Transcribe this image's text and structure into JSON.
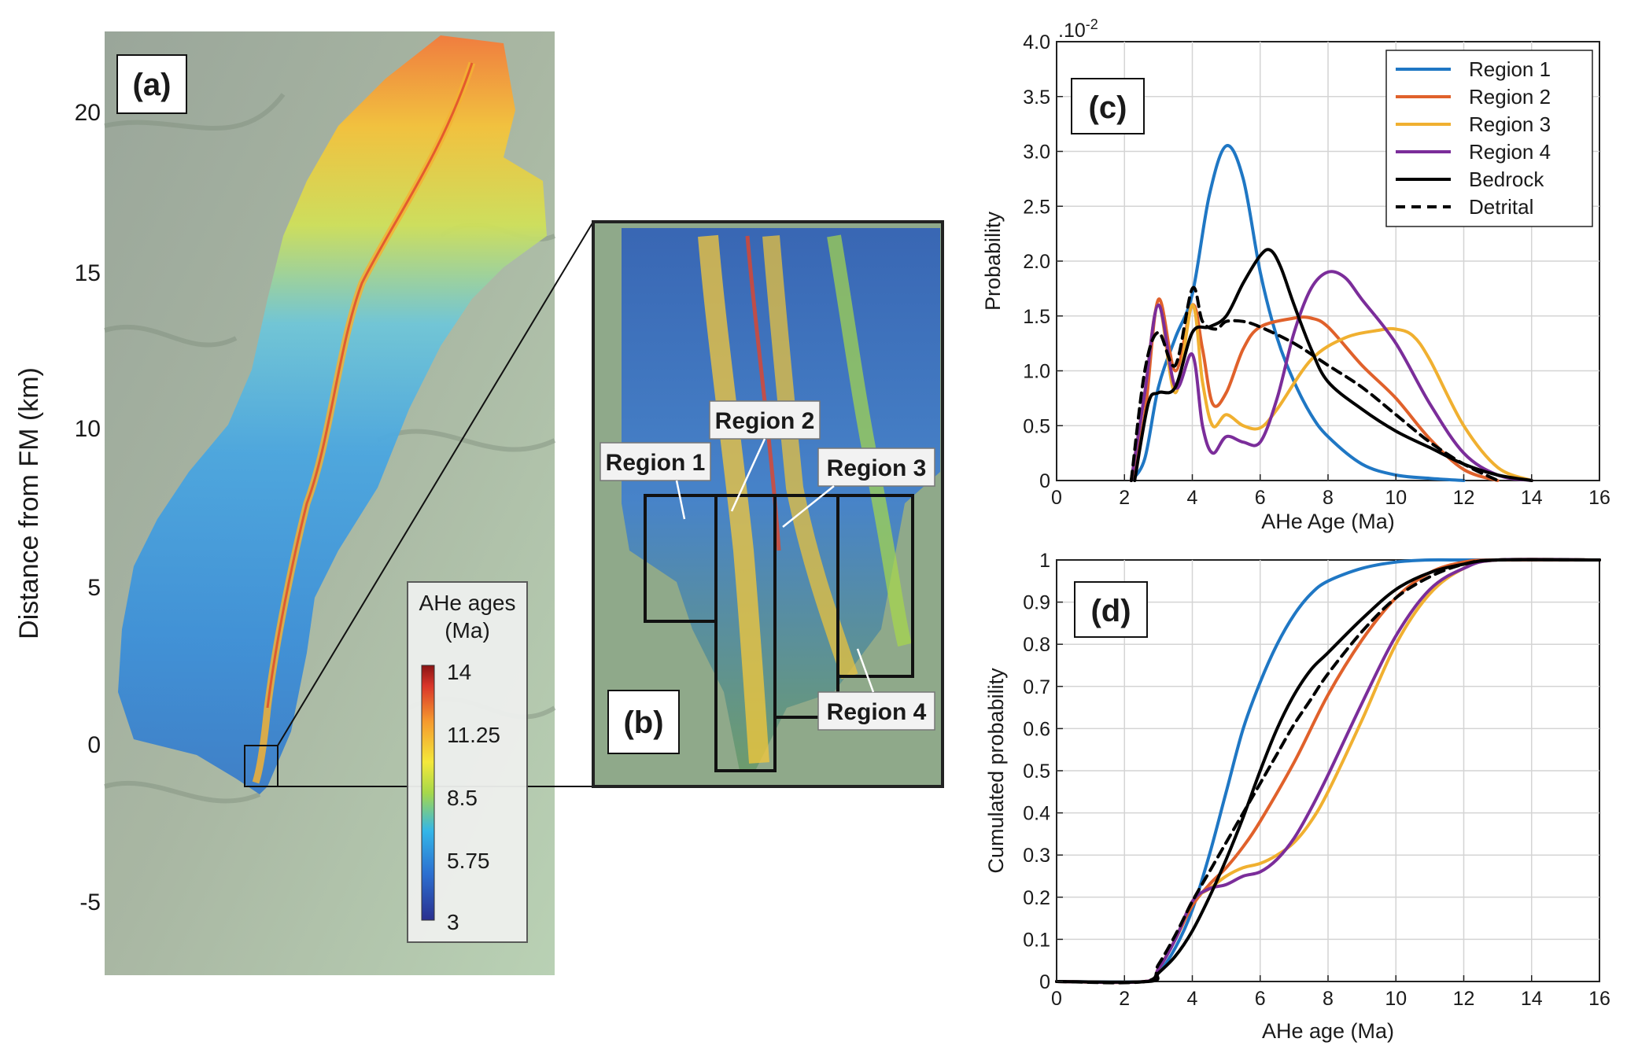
{
  "panels": {
    "a": {
      "label": "(a)",
      "ylabel": "Distance from FM (km)",
      "yticks": [
        "20",
        "15",
        "10",
        "5",
        "0",
        "-5"
      ],
      "colorbar": {
        "title_line1": "AHe ages",
        "title_line2": "(Ma)",
        "ticks": [
          "14",
          "11.25",
          "8.5",
          "5.75",
          "3"
        ]
      }
    },
    "b": {
      "label": "(b)",
      "regions": [
        "Region 1",
        "Region 2",
        "Region 3",
        "Region 4"
      ]
    },
    "c": {
      "label": "(c)"
    },
    "d": {
      "label": "(d)"
    }
  },
  "colors": {
    "region1": "#1f77c4",
    "region2": "#e0612b",
    "region3": "#f0b030",
    "region4": "#7b2d9a",
    "bedrock": "#000000",
    "detrital": "#000000"
  },
  "chart_data": [
    {
      "type": "line",
      "panel": "c",
      "xlabel": "AHe Age (Ma)",
      "ylabel": "Probability",
      "exponent_label": ".10",
      "exponent_power": "-2",
      "xlim": [
        0,
        16
      ],
      "ylim": [
        0,
        4.0
      ],
      "xticks": [
        "0",
        "2",
        "4",
        "6",
        "8",
        "10",
        "12",
        "14",
        "16"
      ],
      "yticks": [
        "0",
        "0.5",
        "1.0",
        "1.5",
        "2.0",
        "2.5",
        "3.0",
        "3.5",
        "4.0"
      ],
      "grid": true,
      "legend_position": "top-right",
      "series": [
        {
          "name": "Region 1",
          "color": "#1f77c4",
          "dash": "solid",
          "x": [
            2.2,
            2.6,
            3.0,
            3.5,
            4.0,
            4.5,
            5.0,
            5.5,
            6.0,
            6.5,
            7.0,
            7.5,
            8.0,
            9.0,
            10.0,
            11.0,
            12.0
          ],
          "y": [
            0,
            0.2,
            0.85,
            1.3,
            1.7,
            2.6,
            3.05,
            2.75,
            1.9,
            1.3,
            0.9,
            0.6,
            0.4,
            0.15,
            0.05,
            0.02,
            0
          ]
        },
        {
          "name": "Region 2",
          "color": "#e0612b",
          "dash": "solid",
          "x": [
            2.2,
            2.6,
            3.0,
            3.5,
            4.0,
            4.3,
            4.6,
            5.0,
            5.5,
            6.0,
            7.0,
            7.5,
            8.0,
            9.0,
            10.0,
            11.0,
            12.0,
            13.0
          ],
          "y": [
            0,
            0.6,
            1.65,
            1.0,
            1.6,
            1.2,
            0.7,
            0.8,
            1.2,
            1.4,
            1.48,
            1.48,
            1.4,
            1.05,
            0.75,
            0.38,
            0.1,
            0
          ]
        },
        {
          "name": "Region 3",
          "color": "#f0b030",
          "dash": "solid",
          "x": [
            2.2,
            2.6,
            3.0,
            3.5,
            4.0,
            4.3,
            4.6,
            5.0,
            5.5,
            6.0,
            6.5,
            7.5,
            8.5,
            9.5,
            10.0,
            10.5,
            11.0,
            12.0,
            13.0,
            14.0
          ],
          "y": [
            0,
            0.8,
            1.6,
            0.8,
            1.6,
            0.9,
            0.5,
            0.6,
            0.5,
            0.48,
            0.65,
            1.1,
            1.3,
            1.37,
            1.38,
            1.32,
            1.1,
            0.5,
            0.12,
            0
          ]
        },
        {
          "name": "Region 4",
          "color": "#7b2d9a",
          "dash": "solid",
          "x": [
            2.2,
            2.6,
            3.0,
            3.5,
            4.0,
            4.3,
            4.6,
            5.0,
            5.5,
            6.0,
            6.5,
            7.0,
            7.5,
            8.0,
            8.5,
            9.0,
            10.0,
            11.0,
            12.0,
            13.0,
            14.0
          ],
          "y": [
            0,
            0.8,
            1.6,
            0.85,
            1.15,
            0.5,
            0.25,
            0.4,
            0.35,
            0.35,
            0.75,
            1.35,
            1.75,
            1.9,
            1.85,
            1.65,
            1.25,
            0.7,
            0.25,
            0.05,
            0
          ]
        },
        {
          "name": "Bedrock",
          "color": "#000000",
          "dash": "solid",
          "x": [
            2.3,
            2.7,
            3.0,
            3.5,
            4.0,
            4.5,
            5.0,
            5.5,
            6.0,
            6.3,
            6.6,
            7.0,
            7.5,
            8.0,
            9.0,
            10.0,
            11.0,
            12.0,
            13.0,
            14.0
          ],
          "y": [
            0,
            0.7,
            0.8,
            0.85,
            1.35,
            1.4,
            1.5,
            1.8,
            2.05,
            2.1,
            1.95,
            1.6,
            1.2,
            0.9,
            0.65,
            0.45,
            0.3,
            0.15,
            0.05,
            0
          ]
        },
        {
          "name": "Detrital",
          "color": "#000000",
          "dash": "dashed",
          "x": [
            2.2,
            2.6,
            3.0,
            3.5,
            4.0,
            4.3,
            4.7,
            5.0,
            5.5,
            6.0,
            7.0,
            8.0,
            9.0,
            10.0,
            11.0,
            12.0,
            13.0
          ],
          "y": [
            0,
            1.0,
            1.35,
            1.05,
            1.75,
            1.45,
            1.38,
            1.45,
            1.45,
            1.4,
            1.25,
            1.05,
            0.85,
            0.6,
            0.35,
            0.15,
            0
          ]
        }
      ]
    },
    {
      "type": "line",
      "panel": "d",
      "xlabel": "AHe age (Ma)",
      "ylabel": "Cumulated probability",
      "xlim": [
        0,
        16
      ],
      "ylim": [
        0,
        1
      ],
      "xticks": [
        "0",
        "2",
        "4",
        "6",
        "8",
        "10",
        "12",
        "14",
        "16"
      ],
      "yticks": [
        "0",
        "0.1",
        "0.2",
        "0.3",
        "0.4",
        "0.5",
        "0.6",
        "0.7",
        "0.8",
        "0.9",
        "1"
      ],
      "grid": true,
      "series": [
        {
          "name": "Region 1",
          "color": "#1f77c4",
          "dash": "solid",
          "x": [
            0,
            2.6,
            3.0,
            3.5,
            4.0,
            4.5,
            5.0,
            5.5,
            6.0,
            6.5,
            7.0,
            7.5,
            8.0,
            9.0,
            10.0,
            11.0,
            12.0,
            16.0
          ],
          "y": [
            0,
            0,
            0.02,
            0.08,
            0.17,
            0.3,
            0.45,
            0.6,
            0.71,
            0.8,
            0.87,
            0.92,
            0.95,
            0.98,
            0.995,
            1.0,
            1.0,
            1.0
          ]
        },
        {
          "name": "Region 2",
          "color": "#e0612b",
          "dash": "solid",
          "x": [
            0,
            2.6,
            3.0,
            3.5,
            4.0,
            4.5,
            5.0,
            5.5,
            6.0,
            7.0,
            8.0,
            9.0,
            10.0,
            11.0,
            12.0,
            13.0,
            16.0
          ],
          "y": [
            0,
            0,
            0.03,
            0.1,
            0.18,
            0.23,
            0.27,
            0.32,
            0.38,
            0.52,
            0.68,
            0.81,
            0.91,
            0.97,
            0.995,
            1.0,
            1.0
          ]
        },
        {
          "name": "Region 3",
          "color": "#f0b030",
          "dash": "solid",
          "x": [
            0,
            2.6,
            3.0,
            3.5,
            4.0,
            4.5,
            5.0,
            5.5,
            6.0,
            6.5,
            7.0,
            7.5,
            8.0,
            9.0,
            10.0,
            11.0,
            12.0,
            13.0,
            16.0
          ],
          "y": [
            0,
            0,
            0.03,
            0.1,
            0.19,
            0.22,
            0.25,
            0.27,
            0.28,
            0.3,
            0.33,
            0.38,
            0.45,
            0.62,
            0.8,
            0.92,
            0.98,
            1.0,
            1.0
          ]
        },
        {
          "name": "Region 4",
          "color": "#7b2d9a",
          "dash": "solid",
          "x": [
            0,
            2.6,
            3.0,
            3.5,
            4.0,
            4.5,
            5.0,
            5.5,
            6.0,
            6.5,
            7.0,
            7.5,
            8.0,
            9.0,
            10.0,
            11.0,
            12.0,
            13.0,
            16.0
          ],
          "y": [
            0,
            0,
            0.03,
            0.1,
            0.19,
            0.22,
            0.23,
            0.25,
            0.26,
            0.29,
            0.34,
            0.41,
            0.49,
            0.66,
            0.82,
            0.93,
            0.98,
            1.0,
            1.0
          ]
        },
        {
          "name": "Bedrock",
          "color": "#000000",
          "dash": "solid",
          "x": [
            0,
            2.7,
            3.0,
            3.5,
            4.0,
            4.5,
            5.0,
            5.5,
            6.0,
            6.5,
            7.0,
            7.5,
            8.0,
            9.0,
            10.0,
            11.0,
            12.0,
            13.0,
            16.0
          ],
          "y": [
            0,
            0,
            0.02,
            0.06,
            0.12,
            0.2,
            0.29,
            0.39,
            0.5,
            0.6,
            0.68,
            0.74,
            0.78,
            0.86,
            0.93,
            0.97,
            0.99,
            1.0,
            1.0
          ]
        },
        {
          "name": "Detrital",
          "color": "#000000",
          "dash": "dashed",
          "x": [
            0,
            2.6,
            3.0,
            3.5,
            4.0,
            4.5,
            5.0,
            5.5,
            6.0,
            6.5,
            7.0,
            7.5,
            8.0,
            9.0,
            10.0,
            11.0,
            12.0,
            13.0,
            16.0
          ],
          "y": [
            0,
            0,
            0.04,
            0.11,
            0.19,
            0.26,
            0.33,
            0.4,
            0.47,
            0.54,
            0.61,
            0.67,
            0.73,
            0.83,
            0.91,
            0.96,
            0.99,
            1.0,
            1.0
          ]
        }
      ]
    }
  ]
}
